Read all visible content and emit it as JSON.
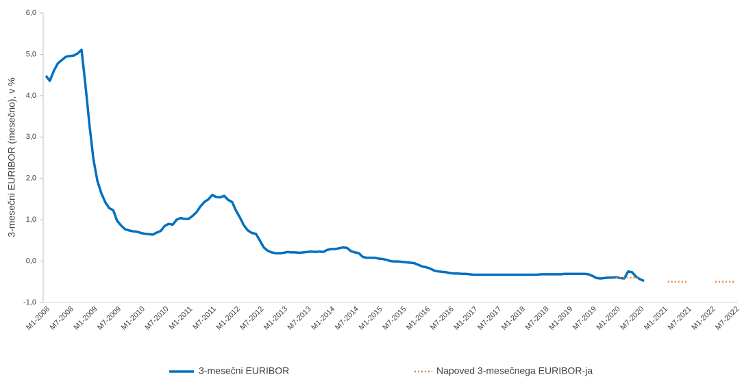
{
  "chart_data": {
    "type": "line",
    "y_label": "3-mesečni EURIBOR (mesečno), v %",
    "ylim": [
      -1,
      6
    ],
    "yticks": [
      {
        "value": -1,
        "label": "-1,0"
      },
      {
        "value": 0,
        "label": "0,0"
      },
      {
        "value": 1,
        "label": "1,0"
      },
      {
        "value": 2,
        "label": "2,0"
      },
      {
        "value": 3,
        "label": "3,0"
      },
      {
        "value": 4,
        "label": "4,0"
      },
      {
        "value": 5,
        "label": "5,0"
      },
      {
        "value": 6,
        "label": "6,0"
      }
    ],
    "legend": "bottom",
    "categories": [
      "M1-2008",
      null,
      null,
      null,
      null,
      null,
      "M7-2008",
      null,
      null,
      null,
      null,
      null,
      "M1-2009",
      null,
      null,
      null,
      null,
      null,
      "M7-2009",
      null,
      null,
      null,
      null,
      null,
      "M1-2010",
      null,
      null,
      null,
      null,
      null,
      "M7-2010",
      null,
      null,
      null,
      null,
      null,
      "M1-2011",
      null,
      null,
      null,
      null,
      null,
      "M7-2011",
      null,
      null,
      null,
      null,
      null,
      "M1-2012",
      null,
      null,
      null,
      null,
      null,
      "M7-2012",
      null,
      null,
      null,
      null,
      null,
      "M1-2013",
      null,
      null,
      null,
      null,
      null,
      "M7-2013",
      null,
      null,
      null,
      null,
      null,
      "M1-2014",
      null,
      null,
      null,
      null,
      null,
      "M7-2014",
      null,
      null,
      null,
      null,
      null,
      "M1-2015",
      null,
      null,
      null,
      null,
      null,
      "M7-2015",
      null,
      null,
      null,
      null,
      null,
      "M1-2016",
      null,
      null,
      null,
      null,
      null,
      "M7-2016",
      null,
      null,
      null,
      null,
      null,
      "M1-2017",
      null,
      null,
      null,
      null,
      null,
      "M7-2017",
      null,
      null,
      null,
      null,
      null,
      "M1-2018",
      null,
      null,
      null,
      null,
      null,
      "M7-2018",
      null,
      null,
      null,
      null,
      null,
      "M1-2019",
      null,
      null,
      null,
      null,
      null,
      "M7-2019",
      null,
      null,
      null,
      null,
      null,
      "M1-2020",
      null,
      null,
      null,
      null,
      null,
      "M7-2020",
      null,
      null,
      null,
      null,
      null,
      "M1-2021",
      null,
      null,
      null,
      null,
      null,
      "M7-2021",
      null,
      null,
      null,
      null,
      null,
      "M1-2022",
      null,
      null,
      null,
      null,
      null,
      "M7-2022"
    ],
    "series": [
      {
        "name": "3-mesečni EURIBOR",
        "color": "#0070c0",
        "dash": false,
        "values": [
          4.48,
          4.36,
          4.6,
          4.78,
          4.86,
          4.94,
          4.96,
          4.97,
          5.02,
          5.11,
          4.24,
          3.29,
          2.46,
          1.94,
          1.64,
          1.42,
          1.28,
          1.23,
          0.97,
          0.86,
          0.77,
          0.74,
          0.72,
          0.71,
          0.68,
          0.66,
          0.65,
          0.64,
          0.69,
          0.73,
          0.85,
          0.9,
          0.88,
          1.0,
          1.04,
          1.02,
          1.02,
          1.09,
          1.18,
          1.32,
          1.43,
          1.49,
          1.6,
          1.55,
          1.54,
          1.58,
          1.48,
          1.43,
          1.22,
          1.05,
          0.86,
          0.74,
          0.68,
          0.66,
          0.5,
          0.33,
          0.25,
          0.21,
          0.19,
          0.19,
          0.2,
          0.22,
          0.21,
          0.21,
          0.2,
          0.21,
          0.22,
          0.23,
          0.22,
          0.23,
          0.22,
          0.27,
          0.29,
          0.29,
          0.31,
          0.33,
          0.32,
          0.24,
          0.21,
          0.19,
          0.1,
          0.08,
          0.08,
          0.08,
          0.06,
          0.05,
          0.03,
          0.0,
          -0.01,
          -0.01,
          -0.02,
          -0.03,
          -0.04,
          -0.05,
          -0.09,
          -0.13,
          -0.15,
          -0.18,
          -0.23,
          -0.25,
          -0.26,
          -0.27,
          -0.29,
          -0.3,
          -0.3,
          -0.31,
          -0.31,
          -0.32,
          -0.33,
          -0.33,
          -0.33,
          -0.33,
          -0.33,
          -0.33,
          -0.33,
          -0.33,
          -0.33,
          -0.33,
          -0.33,
          -0.33,
          -0.33,
          -0.33,
          -0.33,
          -0.33,
          -0.33,
          -0.32,
          -0.32,
          -0.32,
          -0.32,
          -0.32,
          -0.32,
          -0.31,
          -0.31,
          -0.31,
          -0.31,
          -0.31,
          -0.31,
          -0.32,
          -0.36,
          -0.41,
          -0.42,
          -0.41,
          -0.4,
          -0.4,
          -0.39,
          -0.41,
          -0.42,
          -0.25,
          -0.27,
          -0.38,
          -0.44,
          -0.48,
          null,
          null,
          null,
          null,
          null,
          null,
          null,
          null,
          null,
          null,
          null,
          null,
          null,
          null,
          null,
          null,
          null,
          null,
          null,
          null,
          null,
          null,
          null
        ]
      },
      {
        "name": "Napoved 3-mesečnega EURIBOR-ja",
        "color": "#ed7d31",
        "dash": true,
        "values": [
          null,
          null,
          null,
          null,
          null,
          null,
          null,
          null,
          null,
          null,
          null,
          null,
          null,
          null,
          null,
          null,
          null,
          null,
          null,
          null,
          null,
          null,
          null,
          null,
          null,
          null,
          null,
          null,
          null,
          null,
          null,
          null,
          null,
          null,
          null,
          null,
          null,
          null,
          null,
          null,
          null,
          null,
          null,
          null,
          null,
          null,
          null,
          null,
          null,
          null,
          null,
          null,
          null,
          null,
          null,
          null,
          null,
          null,
          null,
          null,
          null,
          null,
          null,
          null,
          null,
          null,
          null,
          null,
          null,
          null,
          null,
          null,
          null,
          null,
          null,
          null,
          null,
          null,
          null,
          null,
          null,
          null,
          null,
          null,
          null,
          null,
          null,
          null,
          null,
          null,
          null,
          null,
          null,
          null,
          null,
          null,
          null,
          null,
          null,
          null,
          null,
          null,
          null,
          null,
          null,
          null,
          null,
          null,
          null,
          null,
          null,
          null,
          null,
          null,
          null,
          null,
          null,
          null,
          null,
          null,
          null,
          null,
          null,
          null,
          null,
          null,
          null,
          null,
          null,
          null,
          null,
          null,
          null,
          null,
          null,
          null,
          null,
          null,
          null,
          null,
          null,
          null,
          null,
          null,
          -0.4,
          -0.4,
          -0.4,
          -0.4,
          -0.4,
          -0.4,
          -0.4,
          null,
          null,
          null,
          null,
          null,
          null,
          -0.5,
          -0.5,
          -0.5,
          -0.5,
          -0.5,
          -0.5,
          null,
          null,
          null,
          null,
          null,
          null,
          -0.5,
          -0.5,
          -0.5,
          -0.5,
          -0.5,
          -0.5
        ]
      }
    ]
  }
}
